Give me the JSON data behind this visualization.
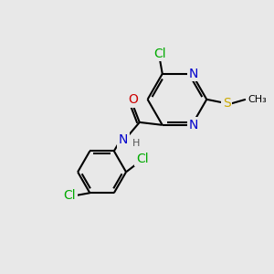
{
  "bg_color": "#e8e8e8",
  "bond_color": "#000000",
  "bond_width": 1.5,
  "atom_colors": {
    "N": "#0000cc",
    "O": "#cc0000",
    "Cl": "#00aa00",
    "S": "#ccaa00",
    "H": "#555555"
  },
  "font_size": 10,
  "fig_size": [
    3.0,
    3.0
  ],
  "dpi": 100
}
